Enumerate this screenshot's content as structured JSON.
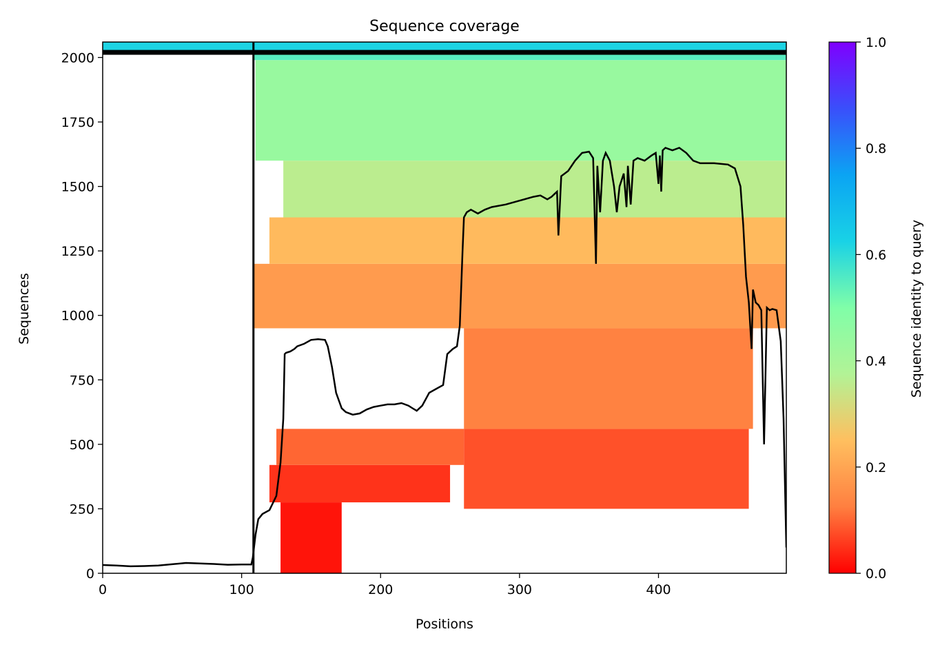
{
  "chart_data": {
    "type": "heatmap",
    "title": "Sequence coverage",
    "xlabel": "Positions",
    "ylabel": "Sequences",
    "xlim": [
      0,
      492
    ],
    "ylim": [
      0,
      2060
    ],
    "x_ticks": [
      0,
      100,
      200,
      300,
      400
    ],
    "y_ticks": [
      0,
      250,
      500,
      750,
      1000,
      1250,
      1500,
      1750,
      2000
    ],
    "separator_x": 108.5,
    "separator_y": 2020,
    "colorbar": {
      "label": "Sequence identity to query",
      "range": [
        0,
        1
      ],
      "ticks": [
        "0.0",
        "0.2",
        "0.4",
        "0.6",
        "0.8",
        "1.0"
      ],
      "colormap": "rainbow_r",
      "stops": [
        "#ff0000",
        "#ff7f40",
        "#ffbf5f",
        "#b2f396",
        "#80fea8",
        "#19d2e6",
        "#0ba4f3",
        "#3a4ffb",
        "#7f00ff"
      ]
    },
    "coverage_blocks": [
      {
        "x_start": 128,
        "x_end": 172,
        "seq_start": 0,
        "seq_end": 275,
        "identity": 0.02
      },
      {
        "x_start": 120,
        "x_end": 250,
        "seq_start": 275,
        "seq_end": 420,
        "identity": 0.05
      },
      {
        "x_start": 125,
        "x_end": 260,
        "seq_start": 420,
        "seq_end": 560,
        "identity": 0.1
      },
      {
        "x_start": 260,
        "x_end": 465,
        "seq_start": 250,
        "seq_end": 560,
        "identity": 0.08
      },
      {
        "x_start": 260,
        "x_end": 468,
        "seq_start": 560,
        "seq_end": 950,
        "identity": 0.13
      },
      {
        "x_start": 108,
        "x_end": 492,
        "seq_start": 950,
        "seq_end": 1200,
        "identity": 0.18
      },
      {
        "x_start": 120,
        "x_end": 492,
        "seq_start": 1200,
        "seq_end": 1380,
        "identity": 0.24
      },
      {
        "x_start": 130,
        "x_end": 492,
        "seq_start": 1380,
        "seq_end": 1600,
        "identity": 0.36
      },
      {
        "x_start": 110,
        "x_end": 492,
        "seq_start": 1600,
        "seq_end": 1990,
        "identity": 0.44
      },
      {
        "x_start": 108,
        "x_end": 492,
        "seq_start": 1990,
        "seq_end": 2020,
        "identity": 0.55
      },
      {
        "x_start": 0,
        "x_end": 492,
        "seq_start": 2020,
        "seq_end": 2060,
        "identity": 0.62
      }
    ],
    "coverage_line": {
      "x": [
        0,
        10,
        20,
        30,
        40,
        50,
        60,
        70,
        80,
        90,
        100,
        107,
        108,
        110,
        112,
        115,
        120,
        125,
        128,
        130,
        131,
        132,
        135,
        138,
        140,
        145,
        150,
        155,
        160,
        162,
        165,
        168,
        172,
        175,
        180,
        185,
        190,
        195,
        200,
        205,
        210,
        215,
        220,
        223,
        226,
        230,
        235,
        240,
        245,
        248,
        250,
        252,
        255,
        257,
        259,
        260,
        262,
        265,
        270,
        275,
        280,
        290,
        300,
        310,
        315,
        320,
        323,
        325,
        327,
        328,
        330,
        335,
        340,
        345,
        350,
        353,
        355,
        356,
        358,
        360,
        362,
        365,
        368,
        370,
        372,
        375,
        377,
        378,
        380,
        382,
        385,
        390,
        395,
        398,
        400,
        401,
        402,
        403,
        405,
        410,
        415,
        420,
        425,
        430,
        440,
        450,
        455,
        459,
        461,
        463,
        465,
        467,
        468,
        470,
        472,
        474,
        476,
        478,
        480,
        482,
        485,
        488,
        490,
        492
      ],
      "y": [
        32,
        30,
        27,
        28,
        30,
        35,
        40,
        38,
        36,
        33,
        34,
        34,
        60,
        150,
        210,
        230,
        245,
        300,
        430,
        600,
        850,
        855,
        860,
        870,
        880,
        890,
        905,
        908,
        905,
        880,
        800,
        700,
        640,
        625,
        615,
        620,
        635,
        645,
        650,
        655,
        655,
        660,
        650,
        640,
        630,
        650,
        700,
        715,
        730,
        850,
        860,
        870,
        880,
        960,
        1250,
        1380,
        1400,
        1410,
        1395,
        1410,
        1420,
        1430,
        1445,
        1460,
        1465,
        1450,
        1460,
        1470,
        1480,
        1310,
        1540,
        1560,
        1600,
        1630,
        1635,
        1610,
        1200,
        1580,
        1400,
        1600,
        1630,
        1600,
        1500,
        1400,
        1500,
        1550,
        1420,
        1580,
        1430,
        1600,
        1610,
        1600,
        1620,
        1630,
        1510,
        1620,
        1480,
        1640,
        1650,
        1640,
        1650,
        1630,
        1600,
        1590,
        1590,
        1585,
        1570,
        1500,
        1350,
        1150,
        1050,
        870,
        1100,
        1050,
        1040,
        1020,
        500,
        1030,
        1020,
        1025,
        1020,
        900,
        600,
        100
      ]
    }
  }
}
